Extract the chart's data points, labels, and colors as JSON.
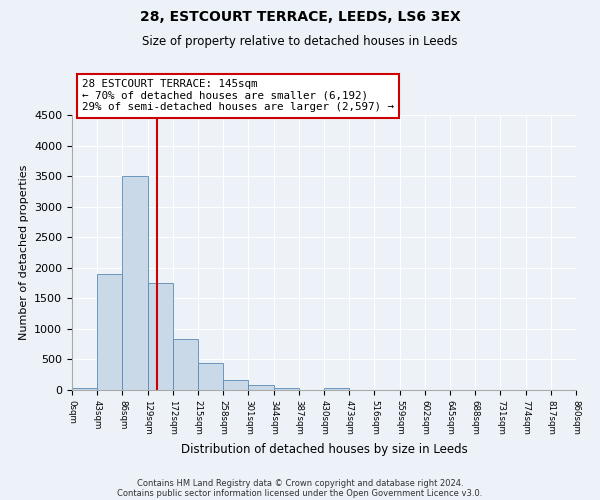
{
  "title": "28, ESTCOURT TERRACE, LEEDS, LS6 3EX",
  "subtitle": "Size of property relative to detached houses in Leeds",
  "xlabel": "Distribution of detached houses by size in Leeds",
  "ylabel": "Number of detached properties",
  "bar_color": "#c9d9e8",
  "bar_edge_color": "#5a8ab5",
  "bin_edges": [
    0,
    43,
    86,
    129,
    172,
    215,
    258,
    301,
    344,
    387,
    430,
    473,
    516,
    559,
    602,
    645,
    688,
    731,
    774,
    817,
    860
  ],
  "bar_heights": [
    40,
    1900,
    3500,
    1750,
    830,
    450,
    160,
    90,
    40,
    0,
    30,
    0,
    0,
    0,
    0,
    0,
    0,
    0,
    0,
    0
  ],
  "tick_labels": [
    "0sqm",
    "43sqm",
    "86sqm",
    "129sqm",
    "172sqm",
    "215sqm",
    "258sqm",
    "301sqm",
    "344sqm",
    "387sqm",
    "430sqm",
    "473sqm",
    "516sqm",
    "559sqm",
    "602sqm",
    "645sqm",
    "688sqm",
    "731sqm",
    "774sqm",
    "817sqm",
    "860sqm"
  ],
  "ylim": [
    0,
    4500
  ],
  "yticks": [
    0,
    500,
    1000,
    1500,
    2000,
    2500,
    3000,
    3500,
    4000,
    4500
  ],
  "vline_x": 145,
  "vline_color": "#cc0000",
  "annotation_title": "28 ESTCOURT TERRACE: 145sqm",
  "annotation_line1": "← 70% of detached houses are smaller (6,192)",
  "annotation_line2": "29% of semi-detached houses are larger (2,597) →",
  "annotation_box_color": "#ffffff",
  "annotation_box_edge": "#cc0000",
  "footer1": "Contains HM Land Registry data © Crown copyright and database right 2024.",
  "footer2": "Contains public sector information licensed under the Open Government Licence v3.0.",
  "background_color": "#edf2f8",
  "plot_bg_color": "#edf2f8"
}
